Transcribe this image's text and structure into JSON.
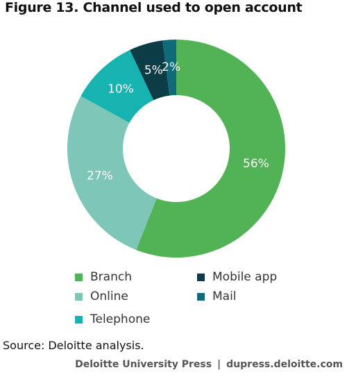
{
  "title": "Figure 13. Channel used to open account",
  "chart_data": {
    "type": "pie",
    "donut": true,
    "title": "Figure 13. Channel used to open account",
    "slices": [
      {
        "name": "Branch",
        "value": 56,
        "label": "56%",
        "color": "#52b356"
      },
      {
        "name": "Online",
        "value": 27,
        "label": "27%",
        "color": "#7ec6b7"
      },
      {
        "name": "Telephone",
        "value": 10,
        "label": "10%",
        "color": "#16b3b0"
      },
      {
        "name": "Mobile app",
        "value": 5,
        "label": "5%",
        "color": "#0c3d47"
      },
      {
        "name": "Mail",
        "value": 2,
        "label": "2%",
        "color": "#0f6b79"
      }
    ],
    "legend_position": "bottom"
  },
  "legend": [
    {
      "label": "Branch",
      "color": "#52b356"
    },
    {
      "label": "Mobile app",
      "color": "#0c3d47"
    },
    {
      "label": "Online",
      "color": "#7ec6b7"
    },
    {
      "label": "Mail",
      "color": "#0f6b79"
    },
    {
      "label": "Telephone",
      "color": "#16b3b0"
    }
  ],
  "source": "Source: Deloitte analysis.",
  "credit": {
    "publisher": "Deloitte University Press",
    "separator": "|",
    "site": "dupress.deloitte.com"
  }
}
